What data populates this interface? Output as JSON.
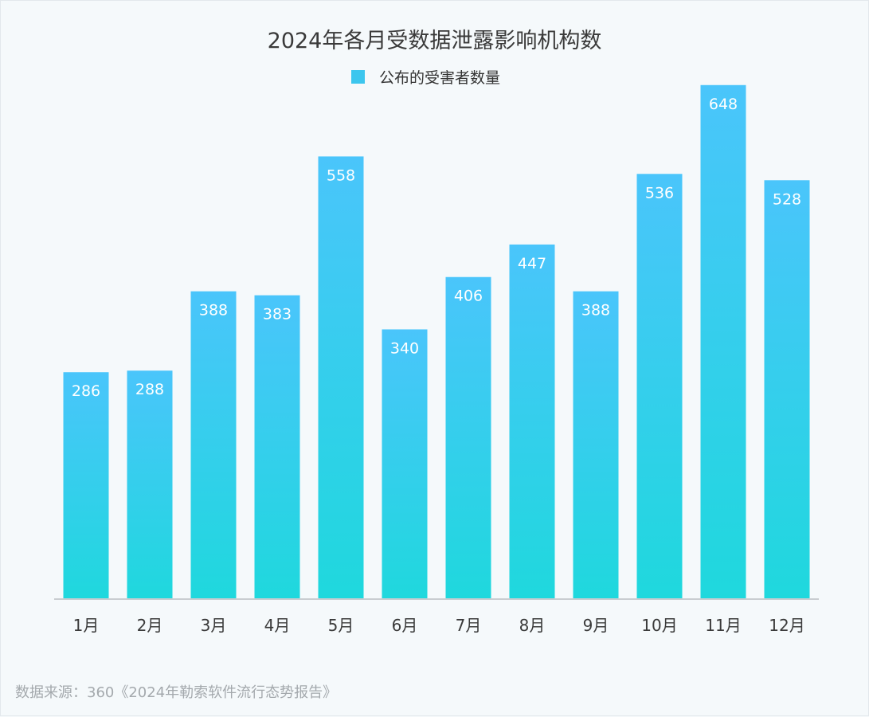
{
  "chart_data": {
    "type": "bar",
    "title": "2024年各月受数据泄露影响机构数",
    "categories": [
      "1月",
      "2月",
      "3月",
      "4月",
      "5月",
      "6月",
      "7月",
      "8月",
      "9月",
      "10月",
      "11月",
      "12月"
    ],
    "series": [
      {
        "name": "公布的受害者数量",
        "values": [
          286,
          288,
          388,
          383,
          558,
          340,
          406,
          447,
          388,
          536,
          648,
          528
        ]
      }
    ],
    "ylim": [
      0,
      700
    ],
    "grid": false,
    "legend": "top-center",
    "colors": {
      "bar_top": "#4ac5fb",
      "bar_bottom": "#1fd8dd",
      "legend": "#3cc6ee"
    }
  },
  "source": "数据来源：360《2024年勒索软件流行态势报告》"
}
